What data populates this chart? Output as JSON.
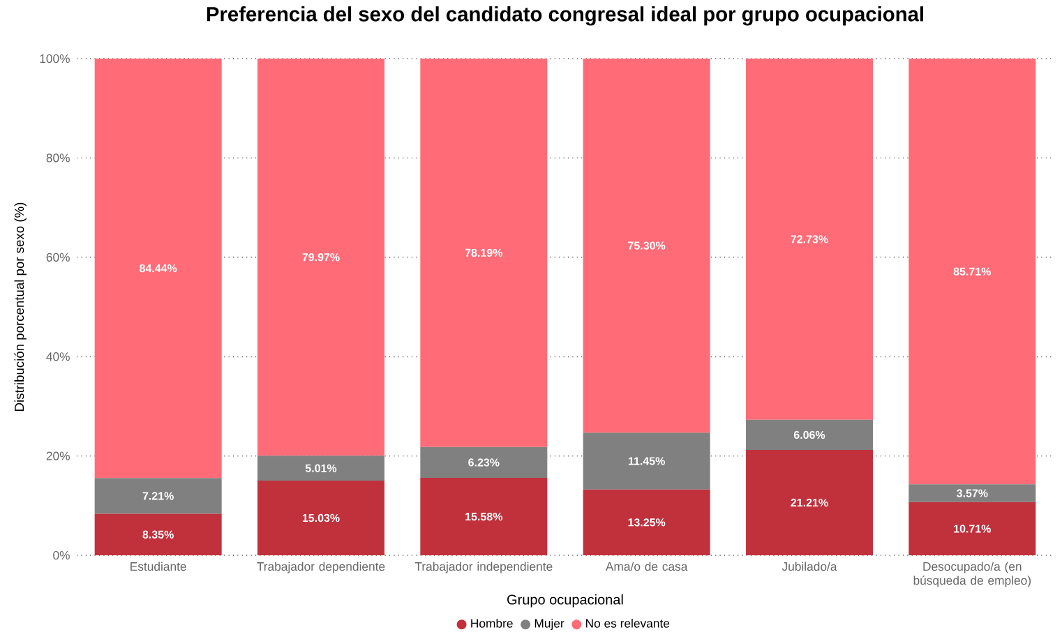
{
  "chart_data": {
    "type": "bar",
    "stacked": true,
    "title": "Preferencia del sexo del candidato congresal ideal por grupo ocupacional",
    "xlabel": "Grupo ocupacional",
    "ylabel": "Distribución porcentual por sexo (%)",
    "categories": [
      "Estudiante",
      "Trabajador dependiente",
      "Trabajador independiente",
      "Ama/o de casa",
      "Jubilado/a",
      "Desocupado/a (en búsqueda de empleo)"
    ],
    "series": [
      {
        "name": "Hombre",
        "color": "#c0313c",
        "values": [
          8.35,
          15.03,
          15.58,
          13.25,
          21.21,
          10.71
        ],
        "value_labels": [
          "8.35%",
          "15.03%",
          "15.58%",
          "13.25%",
          "21.21%",
          "10.71%"
        ]
      },
      {
        "name": "Mujer",
        "color": "#808080",
        "values": [
          7.21,
          5.01,
          6.23,
          11.45,
          6.06,
          3.57
        ],
        "value_labels": [
          "7.21%",
          "5.01%",
          "6.23%",
          "11.45%",
          "6.06%",
          "3.57%"
        ]
      },
      {
        "name": "No es relevante",
        "color": "#ff6b77",
        "values": [
          84.44,
          79.97,
          78.19,
          75.3,
          72.73,
          85.71
        ],
        "value_labels": [
          "84.44%",
          "79.97%",
          "78.19%",
          "75.30%",
          "72.73%",
          "85.71%"
        ]
      }
    ],
    "ylim": [
      0,
      100
    ],
    "yticks": [
      {
        "value": 0,
        "label": "0%"
      },
      {
        "value": 20,
        "label": "20%"
      },
      {
        "value": 40,
        "label": "40%"
      },
      {
        "value": 60,
        "label": "60%"
      },
      {
        "value": 80,
        "label": "80%"
      },
      {
        "value": 100,
        "label": "100%"
      }
    ],
    "grid": "y",
    "legend": "bottom"
  }
}
